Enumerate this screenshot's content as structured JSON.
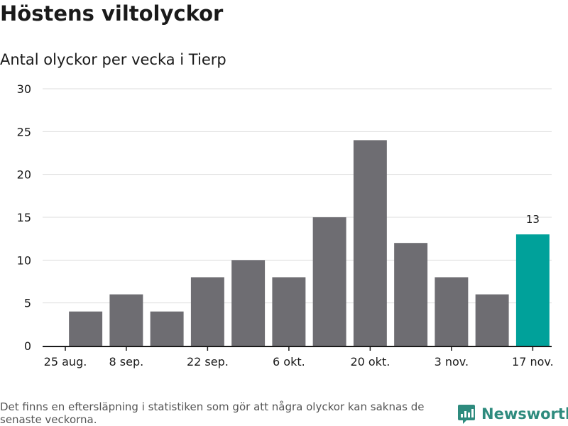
{
  "title": "Höstens viltolyckor",
  "subtitle": "Antal olyckor per vecka i Tierp",
  "footnote": "Det finns en eftersläpning i statistiken som gör att några olyckor kan saknas de senaste veckorna.",
  "brand": {
    "name": "Newsworthy",
    "icon": "newsworthy-logo-icon",
    "color": "#2e8b7e"
  },
  "colors": {
    "bar": "#6e6d72",
    "highlight": "#00a19a",
    "grid": "#dddddd"
  },
  "chart_data": {
    "type": "bar",
    "values": [
      4,
      6,
      4,
      8,
      10,
      8,
      15,
      24,
      12,
      8,
      6,
      13
    ],
    "highlight_index": 11,
    "data_labels": [
      {
        "index": 11,
        "text": "13"
      }
    ],
    "xticks": [
      {
        "label": "25 aug.",
        "position": -0.5
      },
      {
        "label": "8 sep.",
        "position": 1
      },
      {
        "label": "22 sep.",
        "position": 3
      },
      {
        "label": "6 okt.",
        "position": 5
      },
      {
        "label": "20 okt.",
        "position": 7
      },
      {
        "label": "3 nov.",
        "position": 9
      },
      {
        "label": "17 nov.",
        "position": 11
      }
    ],
    "yticks": [
      0,
      5,
      10,
      15,
      20,
      25,
      30
    ],
    "ylim": [
      0,
      30
    ],
    "grid": true,
    "legend": "none"
  }
}
